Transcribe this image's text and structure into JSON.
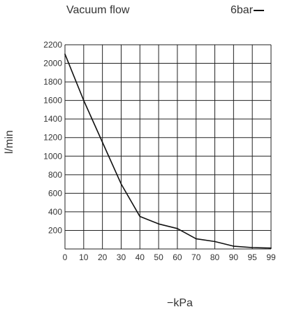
{
  "chart_data": {
    "type": "line",
    "title": "Vacuum flow",
    "xlabel": "−kPa",
    "ylabel": "l/min",
    "categories": [
      "0",
      "10",
      "20",
      "30",
      "40",
      "50",
      "60",
      "70",
      "80",
      "90",
      "95",
      "99"
    ],
    "yticks": [
      "0",
      "200",
      "400",
      "600",
      "800",
      "1000",
      "1200",
      "1400",
      "1600",
      "1800",
      "2000",
      "2200"
    ],
    "ytick_labels_shown": [
      "200",
      "400",
      "600",
      "800",
      "1000",
      "1200",
      "1400",
      "1600",
      "1800",
      "2000",
      "2200"
    ],
    "ylim": [
      0,
      2200
    ],
    "grid": true,
    "legend_position": "top-right",
    "series": [
      {
        "name": "6bar",
        "color": "#111111",
        "values": [
          2100,
          1600,
          1150,
          700,
          350,
          270,
          220,
          110,
          80,
          30,
          15,
          10
        ]
      }
    ]
  }
}
